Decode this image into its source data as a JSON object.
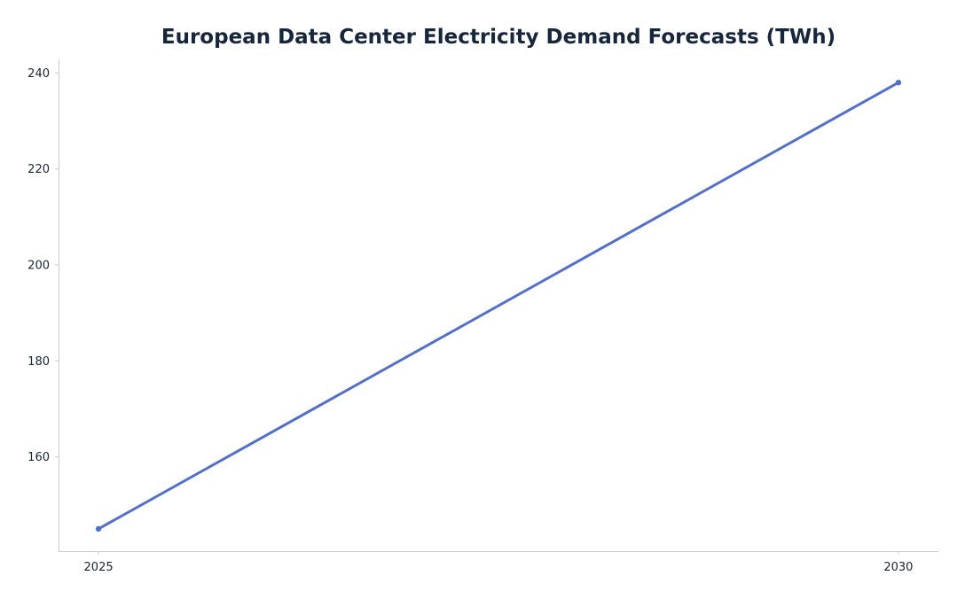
{
  "chart_data": {
    "type": "line",
    "title": "European Data Center Electricity Demand Forecasts (TWh)",
    "xlabel": "",
    "ylabel": "",
    "x": [
      2025,
      2030
    ],
    "series": [
      {
        "values": [
          145,
          238
        ],
        "color": "#5470c6"
      }
    ],
    "xticks": [
      "2025",
      "2030"
    ],
    "yticks": [
      160,
      180,
      200,
      220,
      240
    ],
    "xlim": [
      2024.75,
      2030.25
    ],
    "ylim": [
      140.35,
      242.65
    ],
    "grid": false,
    "legend": "none"
  }
}
